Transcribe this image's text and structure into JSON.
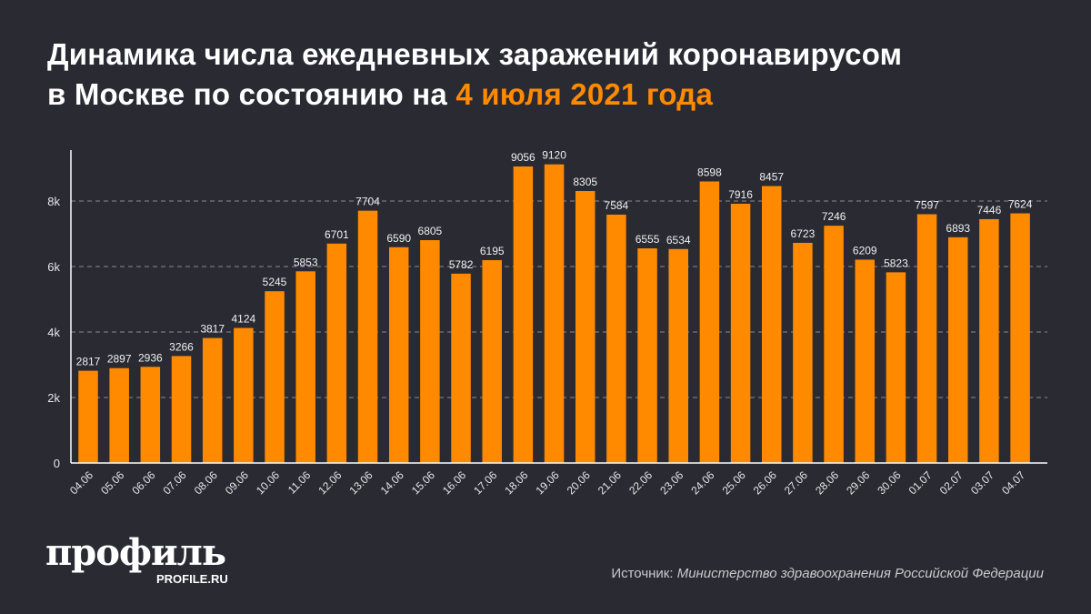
{
  "title": {
    "line1": "Динамика числа ежедневных заражений коронавирусом",
    "line2_prefix": "в Москве по состоянию на ",
    "line2_highlight": "4 июля 2021 года"
  },
  "colors": {
    "bar": "#ff8a00",
    "background": "#2a2a33",
    "highlight": "#ff8a00"
  },
  "chart_data": {
    "type": "bar",
    "title": "Динамика числа ежедневных заражений коронавирусом в Москве по состоянию на 4 июля 2021 года",
    "xlabel": "",
    "ylabel": "",
    "ylim": [
      0,
      9500
    ],
    "yticks": [
      0,
      2000,
      4000,
      6000,
      8000
    ],
    "ytick_labels": [
      "0",
      "2k",
      "4k",
      "6k",
      "8k"
    ],
    "grid": true,
    "categories": [
      "04.06",
      "05.06",
      "06.06",
      "07.06",
      "08.06",
      "09.06",
      "10.06",
      "11.06",
      "12.06",
      "13.06",
      "14.06",
      "15.06",
      "16.06",
      "17.06",
      "18.06",
      "19.06",
      "20.06",
      "21.06",
      "22.06",
      "23.06",
      "24.06",
      "25.06",
      "26.06",
      "27.06",
      "28.06",
      "29.06",
      "30.06",
      "01.07",
      "02.07",
      "03.07",
      "04.07"
    ],
    "values": [
      2817,
      2897,
      2936,
      3266,
      3817,
      4124,
      5245,
      5853,
      6701,
      7704,
      6590,
      6805,
      5782,
      6195,
      9056,
      9120,
      8305,
      7584,
      6555,
      6534,
      8598,
      7916,
      8457,
      6723,
      7246,
      6209,
      5823,
      7597,
      6893,
      7446,
      7624
    ]
  },
  "logo": {
    "text": "профиль",
    "sub": "PROFILE.RU"
  },
  "source": {
    "label": "Источник: ",
    "text": "Министерство здравоохранения Российской Федерации"
  }
}
